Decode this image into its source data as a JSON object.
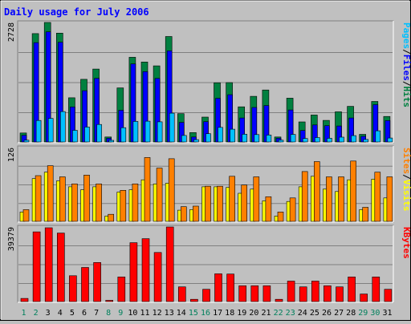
{
  "chart_data": [
    {
      "type": "bar",
      "title": "Daily usage for July 2006",
      "panel": "hits-files-pages",
      "ymax_label": "2728",
      "ymax": 2728,
      "side_label": {
        "parts": [
          "Pages",
          "/",
          "Files",
          "/",
          "Hits"
        ],
        "colors": [
          "#00C0FF",
          "#000000",
          "#0000FF",
          "#000000",
          "#008040"
        ]
      },
      "x": [
        "1",
        "2",
        "3",
        "4",
        "5",
        "6",
        "7",
        "8",
        "9",
        "10",
        "11",
        "12",
        "13",
        "14",
        "15",
        "16",
        "17",
        "18",
        "19",
        "20",
        "21",
        "22",
        "23",
        "24",
        "25",
        "26",
        "27",
        "28",
        "29",
        "30",
        "31"
      ],
      "series": [
        {
          "name": "Hits",
          "color": "#008040",
          "values": [
            205,
            2473,
            2728,
            2484,
            1009,
            1430,
            1665,
            113,
            1234,
            1933,
            1826,
            1737,
            2407,
            646,
            214,
            568,
            1352,
            1355,
            802,
            1041,
            1186,
            113,
            1000,
            458,
            616,
            492,
            688,
            812,
            174,
            925,
            583
          ]
        },
        {
          "name": "Files",
          "color": "#0000FF",
          "values": [
            152,
            2266,
            2514,
            2276,
            799,
            1170,
            1451,
            85,
            723,
            1781,
            1605,
            1450,
            2079,
            447,
            113,
            463,
            996,
            1079,
            548,
            788,
            831,
            85,
            730,
            262,
            389,
            371,
            365,
            547,
            128,
            851,
            487
          ]
        },
        {
          "name": "Pages",
          "color": "#00C0FF",
          "values": [
            40,
            491,
            538,
            693,
            265,
            341,
            399,
            37,
            325,
            469,
            474,
            459,
            657,
            148,
            53,
            188,
            333,
            291,
            175,
            168,
            158,
            40,
            172,
            78,
            101,
            84,
            110,
            144,
            56,
            254,
            90
          ]
        }
      ]
    },
    {
      "type": "bar",
      "panel": "visits-sites",
      "ymax_label": "126",
      "ymax": 126,
      "side_label": {
        "parts": [
          "Sites",
          "/",
          "Visits"
        ],
        "colors": [
          "#FF8000",
          "#000000",
          "#FFFF00"
        ]
      },
      "x": [
        "1",
        "2",
        "3",
        "4",
        "5",
        "6",
        "7",
        "8",
        "9",
        "10",
        "11",
        "12",
        "13",
        "14",
        "15",
        "16",
        "17",
        "18",
        "19",
        "20",
        "21",
        "22",
        "23",
        "24",
        "25",
        "26",
        "27",
        "28",
        "29",
        "30",
        "31"
      ],
      "series": [
        {
          "name": "Visits",
          "color": "#FFFF00",
          "values": [
            16,
            73,
            84,
            69,
            59,
            54,
            59,
            9,
            50,
            54,
            71,
            64,
            65,
            19,
            20,
            59,
            59,
            58,
            48,
            55,
            35,
            9,
            34,
            59,
            77,
            55,
            51,
            71,
            20,
            72,
            40
          ]
        },
        {
          "name": "Sites",
          "color": "#FF8000",
          "values": [
            20,
            78,
            95,
            76,
            64,
            79,
            64,
            12,
            53,
            64,
            109,
            91,
            107,
            25,
            26,
            60,
            60,
            77,
            62,
            76,
            42,
            16,
            40,
            85,
            102,
            76,
            76,
            103,
            24,
            84,
            76
          ]
        }
      ]
    },
    {
      "type": "bar",
      "panel": "kbytes",
      "ymax_label": "39379",
      "ymax": 39379,
      "side_label": {
        "parts": [
          "KBytes"
        ],
        "colors": [
          "#FF0000"
        ]
      },
      "x": [
        "1",
        "2",
        "3",
        "4",
        "5",
        "6",
        "7",
        "8",
        "9",
        "10",
        "11",
        "12",
        "13",
        "14",
        "15",
        "16",
        "17",
        "18",
        "19",
        "20",
        "21",
        "22",
        "23",
        "24",
        "25",
        "26",
        "27",
        "28",
        "29",
        "30",
        "31"
      ],
      "series": [
        {
          "name": "KBytes",
          "color": "#FF0000",
          "values": [
            1650,
            36786,
            38961,
            36161,
            13641,
            18014,
            20637,
            645,
            12993,
            31062,
            33187,
            25922,
            39379,
            7768,
            1189,
            6497,
            14658,
            14521,
            8339,
            8339,
            8339,
            1189,
            10813,
            7768,
            10813,
            8339,
            7768,
            12993,
            4000,
            12993,
            6497
          ]
        }
      ],
      "weekend_days": [
        "1",
        "2",
        "8",
        "9",
        "15",
        "16",
        "22",
        "23",
        "29",
        "30"
      ]
    }
  ]
}
